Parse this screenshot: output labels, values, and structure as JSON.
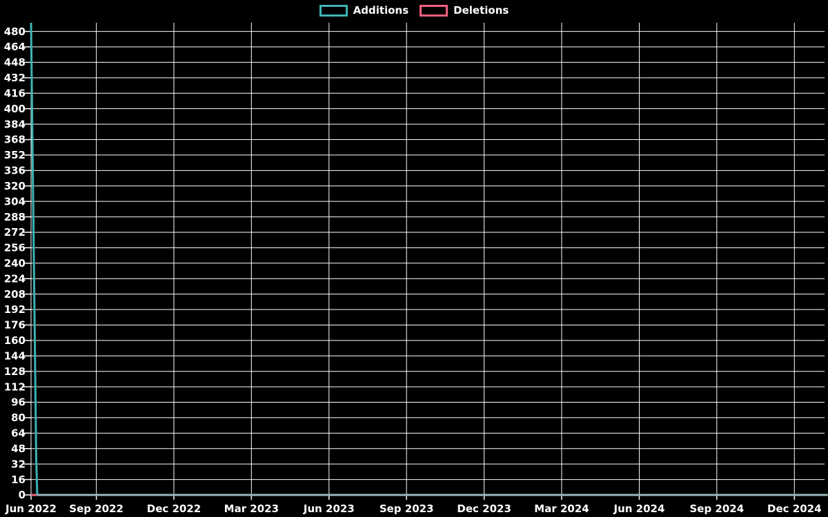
{
  "legend": {
    "items": [
      {
        "label": "Additions",
        "color": "#3cb4b4"
      },
      {
        "label": "Deletions",
        "color": "#f2607e"
      }
    ]
  },
  "chart_data": {
    "type": "line",
    "title": "",
    "xlabel": "",
    "ylabel": "",
    "legend_position": "top-center",
    "grid": true,
    "colors": {
      "background": "#000000",
      "grid": "#ffffff",
      "text": "#ffffff",
      "additions": "#3cb4b4",
      "additions_zero_run": "#9bb6bd",
      "deletions": "#f2607e"
    },
    "x_axis": {
      "ticks": [
        {
          "label": "Jun 2022",
          "t": 0.0
        },
        {
          "label": "Sep 2022",
          "t": 0.0823
        },
        {
          "label": "Dec 2022",
          "t": 0.18
        },
        {
          "label": "Mar 2023",
          "t": 0.2777
        },
        {
          "label": "Jun 2023",
          "t": 0.3755
        },
        {
          "label": "Sep 2023",
          "t": 0.4732
        },
        {
          "label": "Dec 2023",
          "t": 0.571
        },
        {
          "label": "Mar 2024",
          "t": 0.6687
        },
        {
          "label": "Jun 2024",
          "t": 0.7665
        },
        {
          "label": "Sep 2024",
          "t": 0.8642
        },
        {
          "label": "Dec 2024",
          "t": 0.962
        }
      ]
    },
    "y_axis": {
      "ticks": [
        0,
        16,
        32,
        48,
        64,
        80,
        96,
        112,
        128,
        144,
        160,
        176,
        192,
        208,
        224,
        240,
        256,
        272,
        288,
        304,
        320,
        336,
        352,
        368,
        384,
        400,
        416,
        432,
        448,
        464,
        480
      ],
      "lim": [
        0,
        489
      ]
    },
    "series": [
      {
        "name": "Deletions",
        "color": "#f2607e",
        "width": 3,
        "points": [
          {
            "t": 0.0,
            "v": 0
          },
          {
            "t": 1.004,
            "v": 0
          }
        ]
      },
      {
        "name": "Additions",
        "color": "#3cb4b4",
        "tail_color": "#9bb6bd",
        "width": 3,
        "points": [
          {
            "t": 0.0,
            "v": 489
          },
          {
            "t": 0.0065,
            "v": 39
          },
          {
            "t": 0.0078,
            "v": 0
          },
          {
            "t": 1.004,
            "v": 0
          }
        ]
      }
    ]
  }
}
